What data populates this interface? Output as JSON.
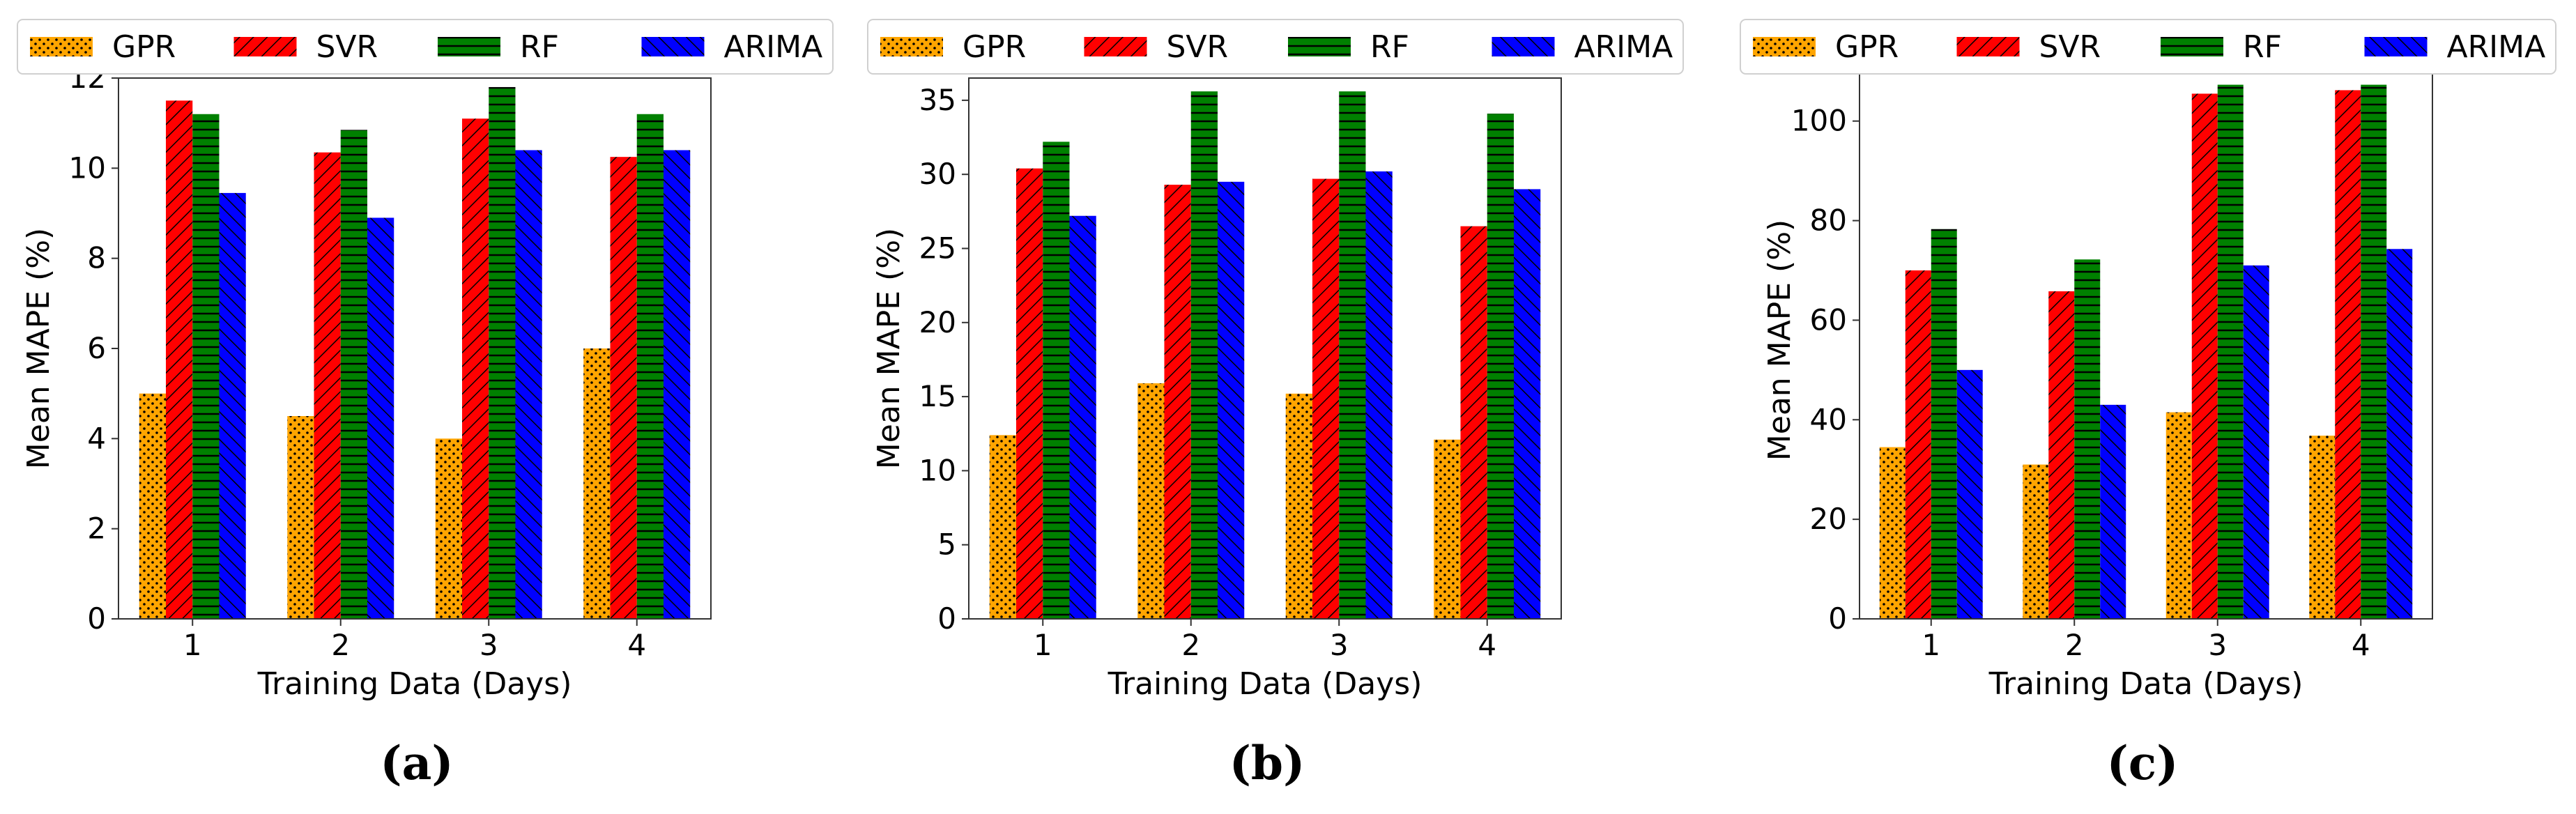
{
  "chart_data": [
    {
      "type": "bar",
      "panel_label": "(a)",
      "categories": [
        "1",
        "2",
        "3",
        "4"
      ],
      "xlabel": "Training Data (Days)",
      "ylabel": "Mean MAPE (%)",
      "ylim": [
        0,
        12
      ],
      "yticks": [
        "0",
        "2",
        "4",
        "6",
        "8",
        "10",
        "12"
      ],
      "legend": "top, horizontal, above plot",
      "grid": false,
      "series": [
        {
          "name": "GPR",
          "values": [
            5.0,
            4.5,
            4.0,
            6.0
          ]
        },
        {
          "name": "SVR",
          "values": [
            11.5,
            10.35,
            11.1,
            10.25
          ]
        },
        {
          "name": "RF",
          "values": [
            11.2,
            10.85,
            11.8,
            11.2
          ]
        },
        {
          "name": "ARIMA",
          "values": [
            9.45,
            8.9,
            10.4,
            10.4
          ]
        }
      ]
    },
    {
      "type": "bar",
      "panel_label": "(b)",
      "categories": [
        "1",
        "2",
        "3",
        "4"
      ],
      "xlabel": "Training Data (Days)",
      "ylabel": "Mean MAPE (%)",
      "ylim": [
        0,
        36.5
      ],
      "yticks": [
        "0",
        "5",
        "10",
        "15",
        "20",
        "25",
        "30",
        "35"
      ],
      "legend": "top, horizontal, above plot",
      "grid": false,
      "series": [
        {
          "name": "GPR",
          "values": [
            12.4,
            15.9,
            15.2,
            12.1
          ]
        },
        {
          "name": "SVR",
          "values": [
            30.4,
            29.3,
            29.7,
            26.5
          ]
        },
        {
          "name": "RF",
          "values": [
            32.2,
            35.6,
            35.6,
            34.1
          ]
        },
        {
          "name": "ARIMA",
          "values": [
            27.2,
            29.5,
            30.2,
            29.0
          ]
        }
      ]
    },
    {
      "type": "bar",
      "panel_label": "(c)",
      "categories": [
        "1",
        "2",
        "3",
        "4"
      ],
      "xlabel": "Training Data (Days)",
      "ylabel": "Mean MAPE (%)",
      "ylim": [
        0,
        112
      ],
      "yticks": [
        "0",
        "20",
        "40",
        "60",
        "80",
        "100"
      ],
      "legend": "top, horizontal, above plot",
      "grid": false,
      "series": [
        {
          "name": "GPR",
          "values": [
            34.5,
            31.0,
            41.5,
            36.8
          ]
        },
        {
          "name": "SVR",
          "values": [
            70.0,
            65.8,
            105.5,
            106.2
          ]
        },
        {
          "name": "RF",
          "values": [
            78.3,
            72.2,
            107.3,
            107.3
          ]
        },
        {
          "name": "ARIMA",
          "values": [
            50.0,
            43.0,
            71.0,
            74.3
          ]
        }
      ]
    }
  ],
  "series_style": [
    {
      "name": "GPR",
      "fill": "#ffa500",
      "pattern": "dots",
      "pattern_color": "#000000"
    },
    {
      "name": "SVR",
      "fill": "#ff0000",
      "pattern": "diagonal-back",
      "pattern_color": "#000000"
    },
    {
      "name": "RF",
      "fill": "#008000",
      "pattern": "horizontal",
      "pattern_color": "#000000"
    },
    {
      "name": "ARIMA",
      "fill": "#0000ff",
      "pattern": "diagonal-forward",
      "pattern_color": "#000000"
    }
  ]
}
